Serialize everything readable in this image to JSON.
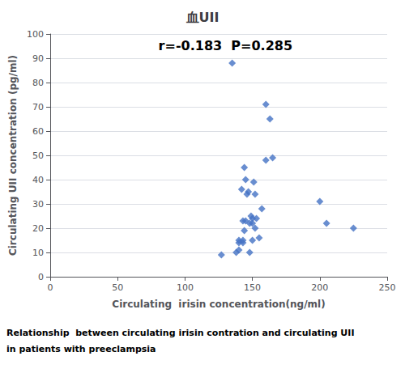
{
  "chart_data": {
    "type": "scatter",
    "title": "血UII",
    "annotation": "r=-0.183  P=0.285",
    "xlabel": "Circulating  irisin concentration(ng/ml)",
    "ylabel": "Circulating UII concentration (pg/ml)",
    "caption": [
      "Relationship  between circulating irisin contration and circulating UII",
      "in patients with preeclampsia"
    ],
    "x": [
      135,
      138,
      140,
      140,
      140,
      142,
      143,
      143,
      143,
      144,
      144,
      145,
      145,
      146,
      147,
      148,
      148,
      149,
      150,
      150,
      150,
      151,
      152,
      152,
      153,
      155,
      157,
      160,
      160,
      163,
      165,
      200,
      205,
      225,
      127
    ],
    "values": [
      88,
      10,
      11,
      14,
      15,
      36,
      23,
      14,
      15,
      19,
      45,
      40,
      23,
      34,
      35,
      10,
      22,
      25,
      15,
      22,
      24,
      39,
      20,
      34,
      24,
      16,
      28,
      71,
      48,
      65,
      49,
      31,
      22,
      20,
      9
    ],
    "color": "#4472C4",
    "marker": "diamond",
    "xlim": [
      0,
      250
    ],
    "ylim": [
      0,
      100
    ],
    "xticks": [
      0,
      50,
      100,
      150,
      200,
      250
    ],
    "yticks": [
      0,
      10,
      20,
      30,
      40,
      50,
      60,
      70,
      80,
      90,
      100
    ],
    "grid": "y"
  }
}
